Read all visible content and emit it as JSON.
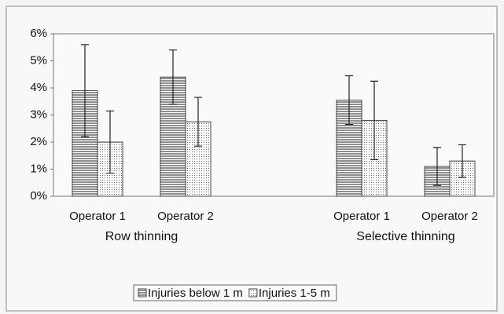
{
  "chart_data": {
    "type": "bar",
    "categories": [
      "Operator 1",
      "Operator 2",
      null,
      "Operator 1",
      "Operator 2"
    ],
    "group_labels": [
      "Row thinning",
      "Selective thinning"
    ],
    "series": [
      {
        "name": "Injuries below 1 m",
        "color": "#444444",
        "pattern": "horizontal",
        "values": [
          3.9,
          4.4,
          null,
          3.55,
          1.1
        ],
        "errors": [
          1.7,
          1.0,
          null,
          0.9,
          0.7
        ]
      },
      {
        "name": "Injuries 1-5 m",
        "color": "#444444",
        "pattern": "dots",
        "values": [
          2.0,
          2.75,
          null,
          2.8,
          1.3
        ],
        "errors": [
          1.15,
          0.9,
          null,
          1.45,
          0.6
        ]
      }
    ],
    "ylim": [
      0,
      6
    ],
    "yticks": [
      {
        "value": 0,
        "label": "0%"
      },
      {
        "value": 1,
        "label": "1%"
      },
      {
        "value": 2,
        "label": "2%"
      },
      {
        "value": 3,
        "label": "3%"
      },
      {
        "value": 4,
        "label": "4%"
      },
      {
        "value": 5,
        "label": "5%"
      },
      {
        "value": 6,
        "label": "6%"
      }
    ],
    "legend": "bottom"
  }
}
